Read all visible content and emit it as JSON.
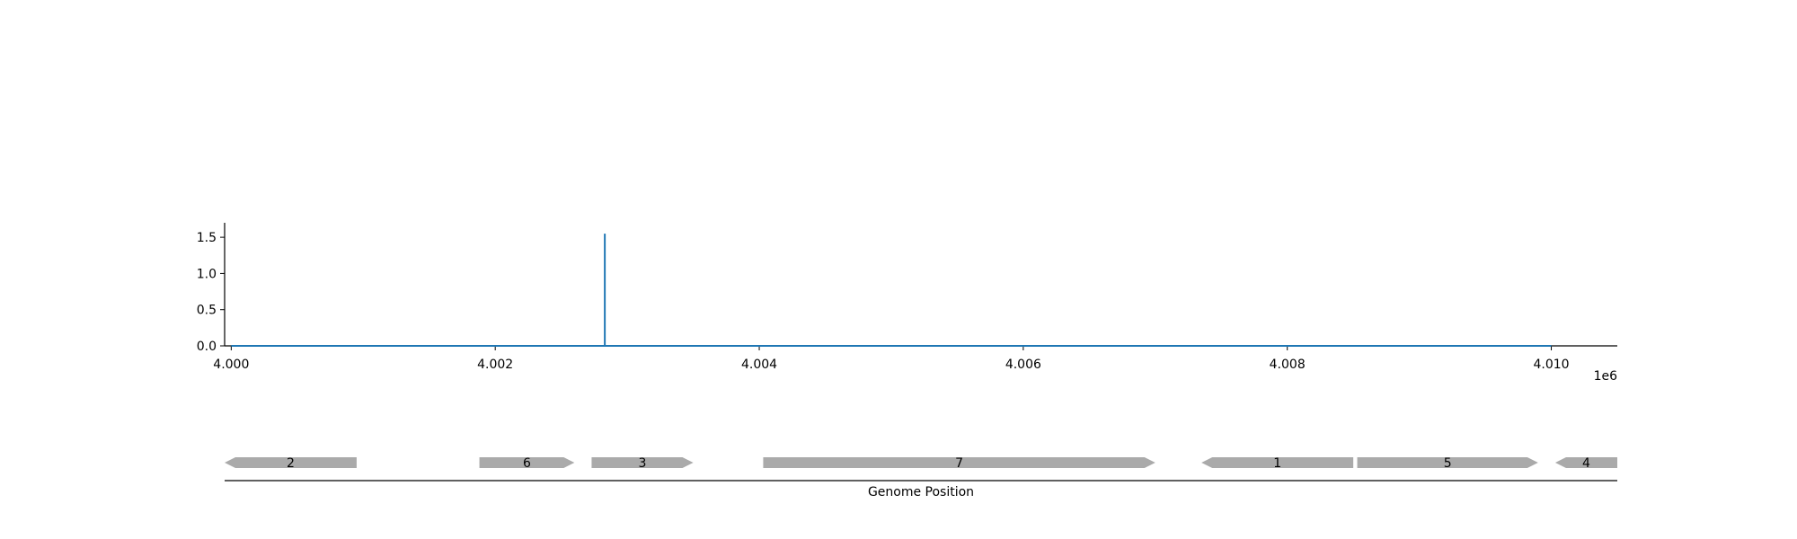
{
  "colors": {
    "signal": "#1f77b4",
    "gene": "#aaaaaa",
    "axis": "#000000",
    "background": "#ffffff"
  },
  "chart_data": [
    {
      "type": "line",
      "title": "",
      "xlabel": "",
      "ylabel": "",
      "x_offset_label": "1e6",
      "xlim": [
        3999950,
        4010500
      ],
      "ylim": [
        0,
        1.7
      ],
      "x_ticks": [
        4000000,
        4002000,
        4004000,
        4006000,
        4008000,
        4010000
      ],
      "x_tick_labels": [
        "4.000",
        "4.002",
        "4.004",
        "4.006",
        "4.008",
        "4.010"
      ],
      "y_ticks": [
        0.0,
        0.5,
        1.0,
        1.5
      ],
      "y_tick_labels": [
        "0.0",
        "0.5",
        "1.0",
        "1.5"
      ],
      "grid": false,
      "series": [
        {
          "x": [
            4000000,
            4002830,
            4002830,
            4002830,
            4010000
          ],
          "y": [
            0,
            0,
            1.55,
            0,
            0
          ]
        }
      ]
    },
    {
      "type": "gene-track",
      "xlabel": "Genome Position",
      "xlim": [
        3999950,
        4010500
      ],
      "genes": [
        {
          "label": "2",
          "start": 3999950,
          "end": 4000950,
          "strand": "-"
        },
        {
          "label": "6",
          "start": 4001880,
          "end": 4002600,
          "strand": "+"
        },
        {
          "label": "3",
          "start": 4002730,
          "end": 4003500,
          "strand": "+"
        },
        {
          "label": "7",
          "start": 4004030,
          "end": 4007000,
          "strand": "+"
        },
        {
          "label": "1",
          "start": 4007350,
          "end": 4008500,
          "strand": "-"
        },
        {
          "label": "5",
          "start": 4008530,
          "end": 4009900,
          "strand": "+"
        },
        {
          "label": "4",
          "start": 4010030,
          "end": 4010500,
          "strand": "-"
        }
      ]
    }
  ]
}
